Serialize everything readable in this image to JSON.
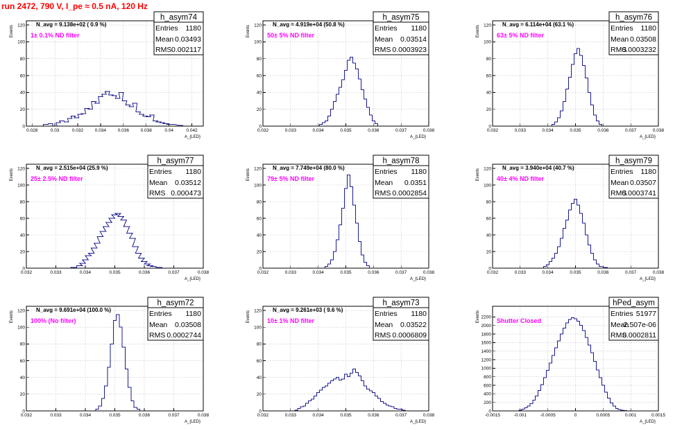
{
  "title": "run 2472,   790 V, I_pe ≈ 0.5 nA, 120 Hz",
  "colors": {
    "title": "#ff0000",
    "histogram": "#1a1a8e",
    "filter_label": "#ff00ff"
  },
  "chart_data": [
    {
      "type": "histogram",
      "name": "h_asym74",
      "navg": "N_avg = 9.138e+02 ( 0.9 %)",
      "filter": "1± 0.1% ND filter",
      "entries": "1180",
      "mean": "0.03493",
      "rms": "0.002117",
      "ylabel": "Events",
      "xlabel": "A_{LED}",
      "grid": true,
      "xlim": [
        0.0275,
        0.043
      ],
      "ylim": [
        0,
        125
      ],
      "xticks": [
        0.028,
        0.03,
        0.032,
        0.034,
        0.036,
        0.038,
        0.04,
        0.042
      ],
      "xticklabels": [
        "0.028",
        "0.03",
        "0.032",
        "0.034",
        "0.036",
        "0.038",
        "0.04",
        "0.042"
      ],
      "yticks": [
        0,
        20,
        40,
        60,
        80,
        100,
        120
      ],
      "bins": [
        [
          0.0292,
          2
        ],
        [
          0.0296,
          3
        ],
        [
          0.03,
          0
        ],
        [
          0.0303,
          4
        ],
        [
          0.0306,
          6
        ],
        [
          0.031,
          5
        ],
        [
          0.0313,
          9
        ],
        [
          0.0316,
          12
        ],
        [
          0.0319,
          10
        ],
        [
          0.0322,
          14
        ],
        [
          0.0325,
          15
        ],
        [
          0.0328,
          21
        ],
        [
          0.0331,
          20
        ],
        [
          0.0334,
          29
        ],
        [
          0.0337,
          27
        ],
        [
          0.034,
          35
        ],
        [
          0.0343,
          38
        ],
        [
          0.0346,
          41
        ],
        [
          0.0349,
          37
        ],
        [
          0.0352,
          36
        ],
        [
          0.0355,
          33
        ],
        [
          0.0358,
          40
        ],
        [
          0.0361,
          30
        ],
        [
          0.0364,
          25
        ],
        [
          0.0367,
          23
        ],
        [
          0.037,
          27
        ],
        [
          0.0373,
          17
        ],
        [
          0.0376,
          14
        ],
        [
          0.0379,
          12
        ],
        [
          0.0382,
          11
        ],
        [
          0.0385,
          13
        ],
        [
          0.0388,
          6
        ],
        [
          0.0391,
          5
        ],
        [
          0.0394,
          4
        ],
        [
          0.0397,
          3
        ],
        [
          0.04,
          2
        ],
        [
          0.0403,
          2
        ],
        [
          0.041,
          1
        ]
      ]
    },
    {
      "type": "histogram",
      "name": "h_asym75",
      "navg": "N_avg = 4.919e+04 (50.8 %)",
      "filter": "50± 5% ND filter",
      "entries": "1180",
      "mean": "0.03514",
      "rms": "0.0003923",
      "ylabel": "Events",
      "xlabel": "A_{LED}",
      "grid": true,
      "xlim": [
        0.032,
        0.038
      ],
      "ylim": [
        0,
        125
      ],
      "xticks": [
        0.032,
        0.033,
        0.034,
        0.035,
        0.036,
        0.037,
        0.038
      ],
      "xticklabels": [
        "0.032",
        "0.033",
        "0.034",
        "0.035",
        "0.036",
        "0.037",
        "0.038"
      ],
      "yticks": [
        0,
        20,
        40,
        60,
        80,
        100,
        120
      ],
      "bins": [
        [
          0.0341,
          2
        ],
        [
          0.0342,
          4
        ],
        [
          0.0343,
          6
        ],
        [
          0.0344,
          12
        ],
        [
          0.0345,
          20
        ],
        [
          0.0346,
          29
        ],
        [
          0.0347,
          38
        ],
        [
          0.0348,
          46
        ],
        [
          0.0349,
          55
        ],
        [
          0.035,
          66
        ],
        [
          0.0351,
          78
        ],
        [
          0.0352,
          82
        ],
        [
          0.0353,
          75
        ],
        [
          0.0354,
          68
        ],
        [
          0.0355,
          56
        ],
        [
          0.0356,
          43
        ],
        [
          0.0357,
          32
        ],
        [
          0.0358,
          22
        ],
        [
          0.0359,
          13
        ],
        [
          0.036,
          6
        ],
        [
          0.0361,
          3
        ]
      ]
    },
    {
      "type": "histogram",
      "name": "h_asym76",
      "navg": "N_avg = 6.114e+04 (63.1 %)",
      "filter": "63± 5% ND filter",
      "entries": "1180",
      "mean": "0.03508",
      "rms": "0.0003232",
      "ylabel": "Events",
      "xlabel": "A_{LED}",
      "grid": true,
      "xlim": [
        0.032,
        0.038
      ],
      "ylim": [
        0,
        125
      ],
      "xticks": [
        0.032,
        0.033,
        0.034,
        0.035,
        0.036,
        0.037,
        0.038
      ],
      "xticklabels": [
        "0.032",
        "0.033",
        "0.034",
        "0.035",
        "0.036",
        "0.037",
        "0.038"
      ],
      "yticks": [
        0,
        20,
        40,
        60,
        80,
        100,
        120
      ],
      "bins": [
        [
          0.0342,
          2
        ],
        [
          0.0343,
          5
        ],
        [
          0.0344,
          10
        ],
        [
          0.0345,
          18
        ],
        [
          0.0346,
          29
        ],
        [
          0.0347,
          44
        ],
        [
          0.0348,
          58
        ],
        [
          0.0349,
          73
        ],
        [
          0.035,
          86
        ],
        [
          0.0351,
          92
        ],
        [
          0.0352,
          84
        ],
        [
          0.0353,
          72
        ],
        [
          0.0354,
          57
        ],
        [
          0.0355,
          40
        ],
        [
          0.0356,
          25
        ],
        [
          0.0357,
          13
        ],
        [
          0.0358,
          6
        ],
        [
          0.0359,
          2
        ]
      ]
    },
    {
      "type": "histogram",
      "name": "h_asym77",
      "navg": "N_avg = 2.515e+04 (25.9 %)",
      "filter": "25± 2.5% ND filter",
      "entries": "1180",
      "mean": "0.03512",
      "rms": "0.000473",
      "ylabel": "Events",
      "xlabel": "A_{LED}",
      "grid": true,
      "xlim": [
        0.032,
        0.038
      ],
      "ylim": [
        0,
        125
      ],
      "xticks": [
        0.032,
        0.033,
        0.034,
        0.035,
        0.036,
        0.037,
        0.038
      ],
      "xticklabels": [
        "0.032",
        "0.033",
        "0.034",
        "0.035",
        "0.036",
        "0.037",
        "0.038"
      ],
      "yticks": [
        0,
        20,
        40,
        60,
        80,
        100,
        120
      ],
      "bins": [
        [
          0.0336,
          1
        ],
        [
          0.0338,
          3
        ],
        [
          0.0339,
          6
        ],
        [
          0.034,
          10
        ],
        [
          0.0341,
          15
        ],
        [
          0.0342,
          18
        ],
        [
          0.0343,
          24
        ],
        [
          0.0344,
          30
        ],
        [
          0.0345,
          38
        ],
        [
          0.0346,
          44
        ],
        [
          0.0347,
          50
        ],
        [
          0.0348,
          55
        ],
        [
          0.0349,
          60
        ],
        [
          0.035,
          64
        ],
        [
          0.0351,
          66
        ],
        [
          0.0352,
          62
        ],
        [
          0.0353,
          58
        ],
        [
          0.0354,
          50
        ],
        [
          0.0355,
          42
        ],
        [
          0.0356,
          36
        ],
        [
          0.0357,
          26
        ],
        [
          0.0358,
          18
        ],
        [
          0.0359,
          12
        ],
        [
          0.036,
          8
        ],
        [
          0.0361,
          5
        ],
        [
          0.0362,
          3
        ],
        [
          0.0363,
          2
        ],
        [
          0.0365,
          1
        ]
      ]
    },
    {
      "type": "histogram",
      "name": "h_asym78",
      "navg": "N_avg = 7.749e+04 (80.0 %)",
      "filter": "79± 5% ND filter",
      "entries": "1180",
      "mean": "0.0351",
      "rms": "0.0002854",
      "ylabel": "Events",
      "xlabel": "A_{LED}",
      "grid": true,
      "xlim": [
        0.032,
        0.038
      ],
      "ylim": [
        0,
        125
      ],
      "xticks": [
        0.032,
        0.033,
        0.034,
        0.035,
        0.036,
        0.037,
        0.038
      ],
      "xticklabels": [
        "0.032",
        "0.033",
        "0.034",
        "0.035",
        "0.036",
        "0.037",
        "0.038"
      ],
      "yticks": [
        0,
        20,
        40,
        60,
        80,
        100,
        120
      ],
      "bins": [
        [
          0.0343,
          2
        ],
        [
          0.0344,
          5
        ],
        [
          0.0345,
          10
        ],
        [
          0.0346,
          20
        ],
        [
          0.0347,
          34
        ],
        [
          0.0348,
          52
        ],
        [
          0.0349,
          72
        ],
        [
          0.035,
          96
        ],
        [
          0.0351,
          112
        ],
        [
          0.0352,
          98
        ],
        [
          0.0353,
          76
        ],
        [
          0.0354,
          54
        ],
        [
          0.0355,
          32
        ],
        [
          0.0356,
          16
        ],
        [
          0.0357,
          7
        ],
        [
          0.0358,
          3
        ]
      ]
    },
    {
      "type": "histogram",
      "name": "h_asym79",
      "navg": "N_avg = 3.940e+04 (40.7 %)",
      "filter": "40± 4% ND filter",
      "entries": "1180",
      "mean": "0.03507",
      "rms": "0.0003741",
      "ylabel": "Events",
      "xlabel": "A_{LED}",
      "grid": true,
      "xlim": [
        0.032,
        0.038
      ],
      "ylim": [
        0,
        125
      ],
      "xticks": [
        0.032,
        0.033,
        0.034,
        0.035,
        0.036,
        0.037,
        0.038
      ],
      "xticklabels": [
        "0.032",
        "0.033",
        "0.034",
        "0.035",
        "0.036",
        "0.037",
        "0.038"
      ],
      "yticks": [
        0,
        20,
        40,
        60,
        80,
        100,
        120
      ],
      "bins": [
        [
          0.0339,
          2
        ],
        [
          0.034,
          4
        ],
        [
          0.0341,
          8
        ],
        [
          0.0342,
          12
        ],
        [
          0.0343,
          18
        ],
        [
          0.0344,
          26
        ],
        [
          0.0345,
          36
        ],
        [
          0.0346,
          48
        ],
        [
          0.0347,
          58
        ],
        [
          0.0348,
          70
        ],
        [
          0.0349,
          78
        ],
        [
          0.035,
          83
        ],
        [
          0.0351,
          76
        ],
        [
          0.0352,
          66
        ],
        [
          0.0353,
          54
        ],
        [
          0.0354,
          40
        ],
        [
          0.0355,
          28
        ],
        [
          0.0356,
          18
        ],
        [
          0.0357,
          10
        ],
        [
          0.0358,
          5
        ],
        [
          0.0359,
          2
        ],
        [
          0.0361,
          1
        ]
      ]
    },
    {
      "type": "histogram",
      "name": "h_asym72",
      "navg": "N_avg = 9.691e+04 (100.0 %)",
      "filter": "100% (No filter)",
      "entries": "1180",
      "mean": "0.03508",
      "rms": "0.0002744",
      "ylabel": "Events",
      "xlabel": "A_{LED}",
      "grid": true,
      "xlim": [
        0.032,
        0.038
      ],
      "ylim": [
        0,
        125
      ],
      "xticks": [
        0.032,
        0.033,
        0.034,
        0.035,
        0.036,
        0.037,
        0.038
      ],
      "xticklabels": [
        "0.032",
        "0.033",
        "0.034",
        "0.035",
        "0.036",
        "0.037",
        "0.038"
      ],
      "yticks": [
        0,
        20,
        40,
        60,
        80,
        100,
        120
      ],
      "bins": [
        [
          0.0344,
          2
        ],
        [
          0.0345,
          6
        ],
        [
          0.0346,
          15
        ],
        [
          0.0347,
          30
        ],
        [
          0.0348,
          52
        ],
        [
          0.0349,
          80
        ],
        [
          0.035,
          108
        ],
        [
          0.0351,
          115
        ],
        [
          0.0352,
          100
        ],
        [
          0.0353,
          76
        ],
        [
          0.0354,
          50
        ],
        [
          0.0355,
          28
        ],
        [
          0.0356,
          12
        ],
        [
          0.0357,
          4
        ],
        [
          0.0358,
          2
        ]
      ]
    },
    {
      "type": "histogram",
      "name": "h_asym73",
      "navg": "N_avg = 9.261e+03 ( 9.6 %)",
      "filter": "10± 1% ND filter",
      "entries": "1180",
      "mean": "0.03522",
      "rms": "0.0006809",
      "ylabel": "Events",
      "xlabel": "A_{LED}",
      "grid": true,
      "xlim": [
        0.032,
        0.038
      ],
      "ylim": [
        0,
        125
      ],
      "xticks": [
        0.032,
        0.033,
        0.034,
        0.035,
        0.036,
        0.037,
        0.038
      ],
      "xticklabels": [
        "0.032",
        "0.033",
        "0.034",
        "0.035",
        "0.036",
        "0.037",
        "0.038"
      ],
      "yticks": [
        0,
        20,
        40,
        60,
        80,
        100,
        120
      ],
      "bins": [
        [
          0.0332,
          1
        ],
        [
          0.0333,
          3
        ],
        [
          0.0334,
          5
        ],
        [
          0.0335,
          6
        ],
        [
          0.0336,
          9
        ],
        [
          0.0337,
          12
        ],
        [
          0.0338,
          14
        ],
        [
          0.0339,
          18
        ],
        [
          0.034,
          22
        ],
        [
          0.0341,
          25
        ],
        [
          0.0342,
          28
        ],
        [
          0.0343,
          30
        ],
        [
          0.0344,
          33
        ],
        [
          0.0345,
          36
        ],
        [
          0.0346,
          38
        ],
        [
          0.0347,
          40
        ],
        [
          0.0348,
          37
        ],
        [
          0.0349,
          38
        ],
        [
          0.035,
          44
        ],
        [
          0.0351,
          41
        ],
        [
          0.0352,
          45
        ],
        [
          0.0353,
          50
        ],
        [
          0.0354,
          46
        ],
        [
          0.0355,
          42
        ],
        [
          0.0356,
          36
        ],
        [
          0.0357,
          30
        ],
        [
          0.0358,
          26
        ],
        [
          0.0359,
          24
        ],
        [
          0.036,
          22
        ],
        [
          0.0361,
          18
        ],
        [
          0.0362,
          15
        ],
        [
          0.0363,
          11
        ],
        [
          0.0364,
          9
        ],
        [
          0.0365,
          7
        ],
        [
          0.0366,
          6
        ],
        [
          0.0367,
          5
        ],
        [
          0.0368,
          3
        ],
        [
          0.0369,
          2
        ],
        [
          0.037,
          2
        ],
        [
          0.0371,
          1
        ]
      ]
    },
    {
      "type": "histogram",
      "name": "hPed_asym",
      "navg": "",
      "filter": "Shutter Closed",
      "entries": "51977",
      "mean": "-2.507e-06",
      "rms": "0.0002811",
      "ylabel": "Events",
      "xlabel": "A_{LED}",
      "grid": true,
      "xlim": [
        -0.0015,
        0.0015
      ],
      "ylim": [
        0,
        2450
      ],
      "xticks": [
        -0.0015,
        -0.001,
        -0.0005,
        0,
        0.0005,
        0.001,
        0.0015
      ],
      "xticklabels": [
        "-0.0015",
        "-0.001",
        "-0.0005",
        "0",
        "0.0005",
        "0.001",
        "0.0015"
      ],
      "yticks": [
        0,
        200,
        400,
        600,
        800,
        1000,
        1200,
        1400,
        1600,
        1800,
        2000,
        2200
      ],
      "bins": [
        [
          -0.001,
          20
        ],
        [
          -0.00095,
          40
        ],
        [
          -0.0009,
          70
        ],
        [
          -0.00085,
          110
        ],
        [
          -0.0008,
          170
        ],
        [
          -0.00075,
          250
        ],
        [
          -0.0007,
          350
        ],
        [
          -0.00065,
          480
        ],
        [
          -0.0006,
          620
        ],
        [
          -0.00055,
          780
        ],
        [
          -0.0005,
          950
        ],
        [
          -0.00045,
          1120
        ],
        [
          -0.0004,
          1300
        ],
        [
          -0.00035,
          1480
        ],
        [
          -0.0003,
          1640
        ],
        [
          -0.00025,
          1800
        ],
        [
          -0.0002,
          1940
        ],
        [
          -0.00015,
          2060
        ],
        [
          -0.0001,
          2140
        ],
        [
          -5e-05,
          2180
        ],
        [
          0.0,
          2160
        ],
        [
          5e-05,
          2100
        ],
        [
          0.0001,
          2000
        ],
        [
          0.00015,
          1880
        ],
        [
          0.0002,
          1720
        ],
        [
          0.00025,
          1540
        ],
        [
          0.0003,
          1360
        ],
        [
          0.00035,
          1160
        ],
        [
          0.0004,
          960
        ],
        [
          0.00045,
          780
        ],
        [
          0.0005,
          600
        ],
        [
          0.00055,
          440
        ],
        [
          0.0006,
          300
        ],
        [
          0.00065,
          190
        ],
        [
          0.0007,
          110
        ],
        [
          0.00075,
          60
        ],
        [
          0.0008,
          30
        ],
        [
          0.00085,
          15
        ],
        [
          0.0009,
          6
        ]
      ]
    }
  ]
}
